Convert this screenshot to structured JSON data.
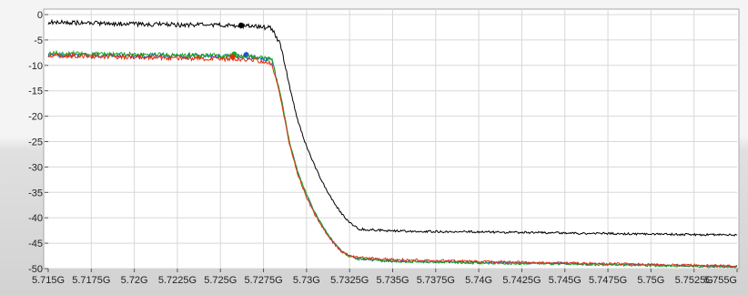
{
  "chart_data": {
    "type": "line",
    "title": "",
    "xlabel": "",
    "ylabel": "",
    "xlim": [
      5.715,
      5.755
    ],
    "ylim": [
      -50,
      0
    ],
    "grid": true,
    "x_tick_labels": [
      "5.715G",
      "5.7175G",
      "5.72G",
      "5.7225G",
      "5.725G",
      "5.7275G",
      "5.73G",
      "5.7325G",
      "5.735G",
      "5.7375G",
      "5.74G",
      "5.7425G",
      "5.745G",
      "5.7475G",
      "5.75G",
      "5.7525G",
      "5.755G"
    ],
    "y_tick_labels": [
      "0",
      "-5",
      "-10",
      "-15",
      "-20",
      "-25",
      "-30",
      "-35",
      "-40",
      "-45",
      "-50"
    ],
    "series": [
      {
        "color": "#000000",
        "marker": [
          5.7262,
          -2.1
        ],
        "x": [
          5.715,
          5.72,
          5.725,
          5.727,
          5.728,
          5.7285,
          5.729,
          5.7295,
          5.73,
          5.7305,
          5.731,
          5.7315,
          5.732,
          5.7325,
          5.733,
          5.735,
          5.74,
          5.745,
          5.75,
          5.755
        ],
        "y": [
          -1.5,
          -1.9,
          -2.1,
          -2.3,
          -2.7,
          -6,
          -14,
          -21,
          -26,
          -30,
          -33.5,
          -36.5,
          -39,
          -41,
          -42.2,
          -42.6,
          -42.8,
          -43,
          -43.2,
          -43.4
        ]
      },
      {
        "color": "#1a4fd8",
        "marker": [
          5.7265,
          -7.9
        ],
        "x": [
          5.715,
          5.72,
          5.725,
          5.727,
          5.728,
          5.7285,
          5.729,
          5.7295,
          5.73,
          5.7305,
          5.731,
          5.7315,
          5.732,
          5.7325,
          5.733,
          5.735,
          5.74,
          5.745,
          5.75,
          5.755
        ],
        "y": [
          -7.9,
          -8.1,
          -8.2,
          -8.4,
          -9,
          -16,
          -25,
          -31,
          -35.5,
          -39,
          -42,
          -44.5,
          -46.5,
          -47.6,
          -48,
          -48.5,
          -48.8,
          -49,
          -49.3,
          -49.6
        ]
      },
      {
        "color": "#1aa81a",
        "marker": [
          5.7258,
          -7.8
        ],
        "x": [
          5.715,
          5.72,
          5.725,
          5.727,
          5.728,
          5.7285,
          5.729,
          5.7295,
          5.73,
          5.7305,
          5.731,
          5.7315,
          5.732,
          5.7325,
          5.733,
          5.735,
          5.74,
          5.745,
          5.75,
          5.755
        ],
        "y": [
          -7.6,
          -7.9,
          -8.1,
          -8.3,
          -8.9,
          -16,
          -25,
          -31,
          -35.5,
          -39,
          -42,
          -44.5,
          -46.5,
          -47.6,
          -48.1,
          -48.6,
          -48.9,
          -49.1,
          -49.4,
          -49.7
        ]
      },
      {
        "color": "#e03010",
        "marker": [
          5.7257,
          -8.3
        ],
        "x": [
          5.715,
          5.72,
          5.725,
          5.727,
          5.728,
          5.7285,
          5.729,
          5.7295,
          5.73,
          5.7305,
          5.731,
          5.7315,
          5.732,
          5.7325,
          5.733,
          5.735,
          5.74,
          5.745,
          5.75,
          5.755
        ],
        "y": [
          -8,
          -8.4,
          -8.7,
          -9,
          -9.6,
          -16.5,
          -25.5,
          -31.5,
          -36,
          -39.5,
          -42.3,
          -44.7,
          -46.6,
          -47.5,
          -47.8,
          -48.2,
          -48.6,
          -48.9,
          -49.2,
          -49.5
        ]
      }
    ]
  }
}
